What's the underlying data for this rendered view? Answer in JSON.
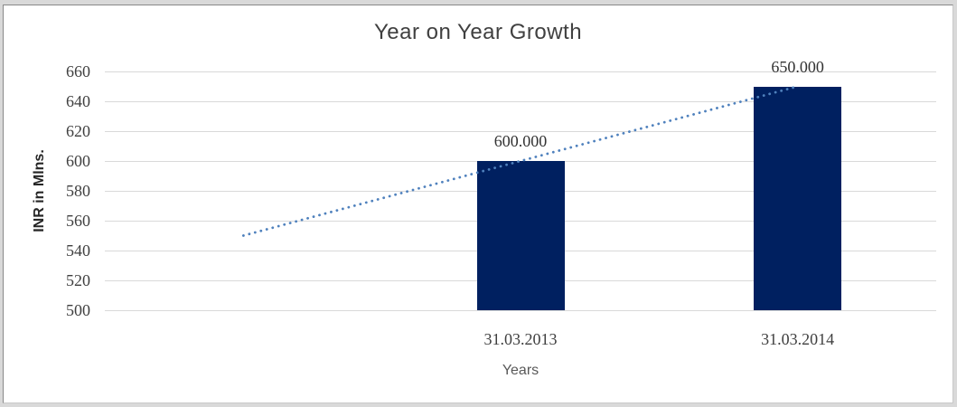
{
  "frame": {
    "background": "#d9d9d9",
    "canvas_background": "#ffffff"
  },
  "chart_data": {
    "type": "bar",
    "title": "Year on Year Growth",
    "xlabel": "Years",
    "ylabel": "INR in Mlns.",
    "ylim": [
      500,
      660
    ],
    "ytick_step": 20,
    "yticks": [
      660,
      640,
      620,
      600,
      580,
      560,
      540,
      520,
      500
    ],
    "grid": "horizontal",
    "legend": "none",
    "num_slots": 3,
    "categories": [
      "31.03.2013",
      "31.03.2014"
    ],
    "bars": [
      {
        "category": "31.03.2013",
        "value": 600,
        "data_label": "600.000",
        "slot": 1
      },
      {
        "category": "31.03.2014",
        "value": 650,
        "data_label": "650.000",
        "slot": 2
      }
    ],
    "trendline": {
      "style": "dotted",
      "color": "#4f81bd",
      "points": [
        {
          "slot": 0,
          "value": 550
        },
        {
          "slot": 2,
          "value": 650
        }
      ]
    },
    "colors": {
      "bar": "#002060",
      "gridline": "#d9d9d9",
      "title_text": "#404040",
      "tick_text": "#3f3f3f",
      "data_label_text": "#333333",
      "x_axis_title_text": "#595959",
      "y_axis_title_text": "#262626"
    }
  }
}
